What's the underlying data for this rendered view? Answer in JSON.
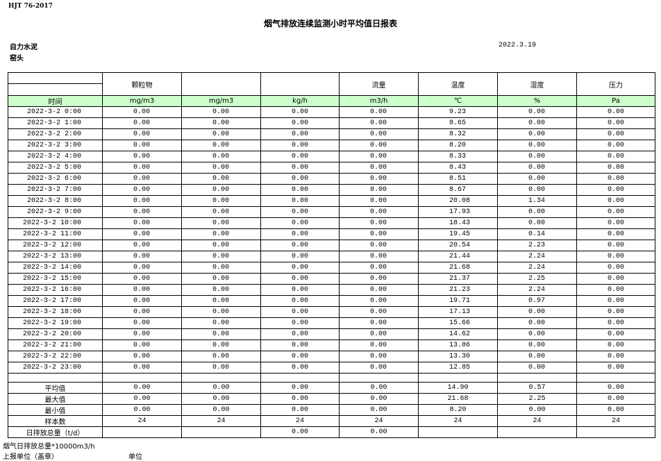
{
  "header": {
    "standard": "HJT   76-2017",
    "title": "烟气排放连续监测小时平均值日报表",
    "company": "自力水泥",
    "location": "窑头",
    "date": "2022.3.19"
  },
  "table": {
    "header": [
      null,
      "颗粒物",
      null,
      null,
      "流量",
      "温度",
      "湿度",
      "压力"
    ],
    "units": [
      "时间",
      "mg/m3",
      "mg/m3",
      "kg/h",
      "m3/h",
      "℃",
      "%",
      "Pa"
    ],
    "rows": [
      [
        "2022-3-2 0:00",
        "0.00",
        "0.00",
        "0.00",
        "0.00",
        "9.23",
        "0.00",
        "0.00"
      ],
      [
        "2022-3-2 1:00",
        "0.00",
        "0.00",
        "0.00",
        "0.00",
        "8.65",
        "0.00",
        "0.00"
      ],
      [
        "2022-3-2 2:00",
        "0.00",
        "0.00",
        "0.00",
        "0.00",
        "8.32",
        "0.00",
        "0.00"
      ],
      [
        "2022-3-2 3:00",
        "0.00",
        "0.00",
        "0.00",
        "0.00",
        "8.20",
        "0.00",
        "0.00"
      ],
      [
        "2022-3-2 4:00",
        "0.00",
        "0.00",
        "0.00",
        "0.00",
        "8.33",
        "0.00",
        "0.00"
      ],
      [
        "2022-3-2 5:00",
        "0.00",
        "0.00",
        "0.00",
        "0.00",
        "8.43",
        "0.00",
        "0.00"
      ],
      [
        "2022-3-2 6:00",
        "0.00",
        "0.00",
        "0.00",
        "0.00",
        "8.51",
        "0.00",
        "0.00"
      ],
      [
        "2022-3-2 7:00",
        "0.00",
        "0.00",
        "0.00",
        "0.00",
        "8.67",
        "0.00",
        "0.00"
      ],
      [
        "2022-3-2 8:00",
        "0.00",
        "0.00",
        "0.00",
        "0.00",
        "20.08",
        "1.34",
        "0.00"
      ],
      [
        "2022-3-2 9:00",
        "0.00",
        "0.00",
        "0.00",
        "0.00",
        "17.93",
        "0.00",
        "0.00"
      ],
      [
        "2022-3-2 10:00",
        "0.00",
        "0.00",
        "0.00",
        "0.00",
        "18.43",
        "0.00",
        "0.00"
      ],
      [
        "2022-3-2 11:00",
        "0.00",
        "0.00",
        "0.00",
        "0.00",
        "19.45",
        "0.14",
        "0.00"
      ],
      [
        "2022-3-2 12:00",
        "0.00",
        "0.00",
        "0.00",
        "0.00",
        "20.54",
        "2.23",
        "0.00"
      ],
      [
        "2022-3-2 13:00",
        "0.00",
        "0.00",
        "0.00",
        "0.00",
        "21.44",
        "2.24",
        "0.00"
      ],
      [
        "2022-3-2 14:00",
        "0.00",
        "0.00",
        "0.00",
        "0.00",
        "21.68",
        "2.24",
        "0.00"
      ],
      [
        "2022-3-2 15:00",
        "0.00",
        "0.00",
        "0.00",
        "0.00",
        "21.37",
        "2.25",
        "0.00"
      ],
      [
        "2022-3-2 16:00",
        "0.00",
        "0.00",
        "0.00",
        "0.00",
        "21.23",
        "2.24",
        "0.00"
      ],
      [
        "2022-3-2 17:00",
        "0.00",
        "0.00",
        "0.00",
        "0.00",
        "19.71",
        "0.97",
        "0.00"
      ],
      [
        "2022-3-2 18:00",
        "0.00",
        "0.00",
        "0.00",
        "0.00",
        "17.13",
        "0.00",
        "0.00"
      ],
      [
        "2022-3-2 19:00",
        "0.00",
        "0.00",
        "0.00",
        "0.00",
        "15.66",
        "0.00",
        "0.00"
      ],
      [
        "2022-3-2 20:00",
        "0.00",
        "0.00",
        "0.00",
        "0.00",
        "14.62",
        "0.00",
        "0.00"
      ],
      [
        "2022-3-2 21:00",
        "0.00",
        "0.00",
        "0.00",
        "0.00",
        "13.86",
        "0.00",
        "0.00"
      ],
      [
        "2022-3-2 22:00",
        "0.00",
        "0.00",
        "0.00",
        "0.00",
        "13.30",
        "0.00",
        "0.00"
      ],
      [
        "2022-3-2 23:00",
        "0.00",
        "0.00",
        "0.00",
        "0.00",
        "12.85",
        "0.00",
        "0.00"
      ]
    ],
    "summary": [
      [
        "平均值",
        "0.00",
        "0.00",
        "0.00",
        "0.00",
        "14.90",
        "0.57",
        "0.00"
      ],
      [
        "最大值",
        "0.00",
        "0.00",
        "0.00",
        "0.00",
        "21.68",
        "2.25",
        "0.00"
      ],
      [
        "最小值",
        "0.00",
        "0.00",
        "0.00",
        "0.00",
        "8.20",
        "0.00",
        "0.00"
      ],
      [
        "样本数",
        "24",
        "24",
        "24",
        "24",
        "24",
        "24",
        "24"
      ],
      [
        "日排放总量（t/d）",
        null,
        null,
        "0.00",
        "0.00",
        null,
        null,
        null
      ]
    ]
  },
  "footer": {
    "flue_total": "烟气日排放总量*10000m3/h",
    "unit_label": "上报单位（盖章）",
    "unit": "单位"
  }
}
